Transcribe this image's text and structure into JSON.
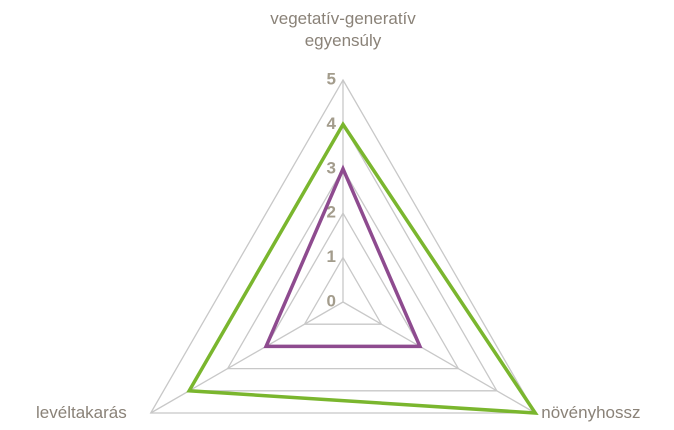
{
  "chart_data": {
    "type": "radar",
    "categories": [
      "vegetatív-generatív egyensúly",
      "növényhossz",
      "levéltakarás"
    ],
    "series": [
      {
        "color": "#7ab62e",
        "values": [
          4,
          5,
          4
        ]
      },
      {
        "color": "#8e4b8f",
        "values": [
          3,
          2,
          2
        ]
      }
    ],
    "ylim": [
      0,
      5
    ],
    "yticks": [
      0,
      1,
      2,
      3,
      4,
      5
    ],
    "grid": true
  }
}
